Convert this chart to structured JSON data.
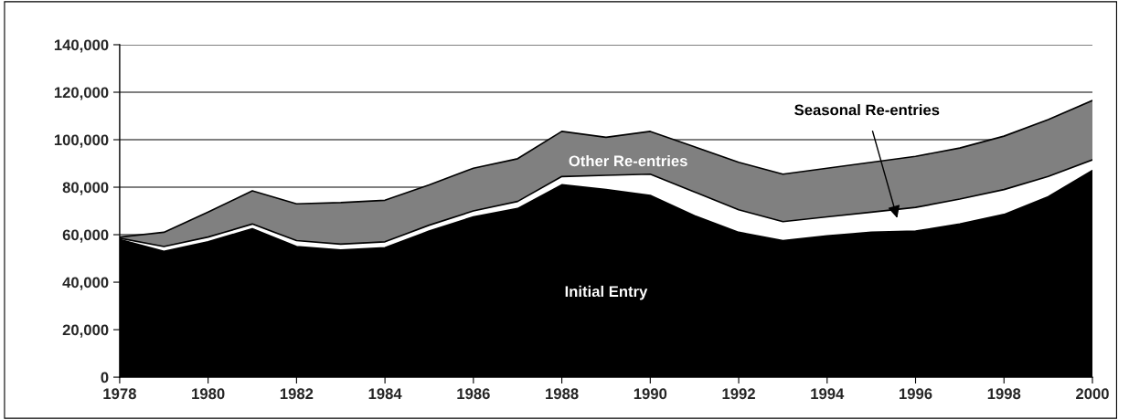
{
  "chart_data": {
    "type": "area",
    "stacked": true,
    "x": [
      1978,
      1979,
      1980,
      1981,
      1982,
      1983,
      1984,
      1985,
      1986,
      1987,
      1988,
      1989,
      1990,
      1991,
      1992,
      1993,
      1994,
      1995,
      1996,
      1997,
      1998,
      1999,
      2000
    ],
    "series": [
      {
        "name": "Initial Entry",
        "color": "#000000",
        "values": [
          58000,
          53000,
          57000,
          62500,
          55000,
          53500,
          54500,
          61500,
          67500,
          71000,
          81000,
          79000,
          76500,
          68000,
          61000,
          57500,
          59500,
          61000,
          61500,
          64500,
          68500,
          76000,
          87000
        ]
      },
      {
        "name": "Seasonal Re-entries",
        "color": "#ffffff",
        "values": [
          500,
          2000,
          2000,
          2000,
          2500,
          2500,
          2500,
          2500,
          2500,
          3000,
          3500,
          6000,
          9000,
          10000,
          9500,
          8000,
          8000,
          8500,
          10000,
          10500,
          10500,
          8500,
          4500
        ]
      },
      {
        "name": "Other Re-entries",
        "color": "#808080",
        "values": [
          500,
          6000,
          10500,
          14000,
          15500,
          17500,
          17500,
          17000,
          18000,
          18000,
          19000,
          16000,
          18000,
          19000,
          20000,
          20000,
          20500,
          21000,
          21500,
          21500,
          22500,
          24000,
          25000
        ]
      }
    ],
    "xlim": [
      1978,
      2000
    ],
    "xticks": [
      1978,
      1980,
      1982,
      1984,
      1986,
      1988,
      1990,
      1992,
      1994,
      1996,
      1998,
      2000
    ],
    "ylim": [
      0,
      140000
    ],
    "yticks": [
      {
        "value": 0,
        "label": "0"
      },
      {
        "value": 20000,
        "label": "20,000"
      },
      {
        "value": 40000,
        "label": "40,000"
      },
      {
        "value": 60000,
        "label": "60,000"
      },
      {
        "value": 80000,
        "label": "80,000"
      },
      {
        "value": 100000,
        "label": "100,000"
      },
      {
        "value": 120000,
        "label": "120,000"
      },
      {
        "value": 140000,
        "label": "140,000"
      }
    ],
    "grid": "y",
    "legend": false
  }
}
